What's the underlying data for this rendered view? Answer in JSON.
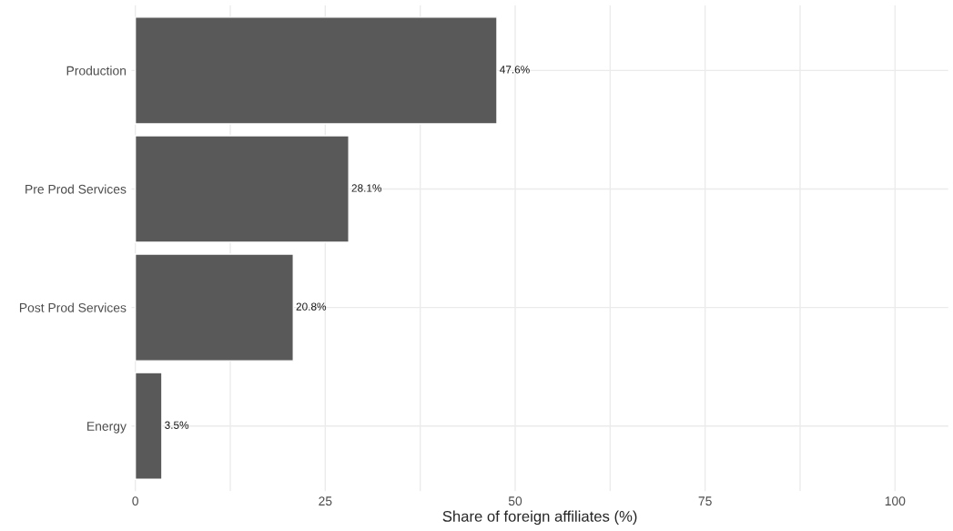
{
  "chart_data": {
    "type": "bar",
    "orientation": "horizontal",
    "xlabel": "Share of foreign affiliates (%)",
    "categories": [
      "Production",
      "Pre Prod Services",
      "Post Prod Services",
      "Energy"
    ],
    "values": [
      47.6,
      28.1,
      20.8,
      3.5
    ],
    "value_labels": [
      "47.6%",
      "28.1%",
      "20.8%",
      "3.5%"
    ],
    "color": "#595959",
    "xlim": [
      -0.5,
      107
    ],
    "xticks": [
      0,
      {
        "value": 12.5,
        "label": null
      },
      25,
      {
        "value": 37.5,
        "label": null
      },
      50,
      {
        "value": 62.5,
        "label": null
      },
      75,
      {
        "value": 87.5,
        "label": null
      },
      100
    ],
    "grid": true
  }
}
